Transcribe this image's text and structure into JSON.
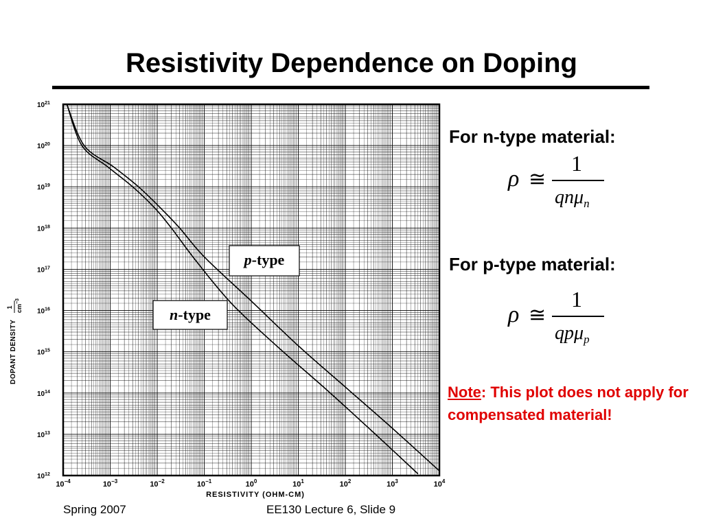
{
  "slide": {
    "title": "Resistivity Dependence on Doping",
    "footer_left": "Spring 2007",
    "footer_center": "EE130 Lecture 6, Slide 9"
  },
  "equations": {
    "n_heading": "For n-type material:",
    "p_heading": "For p-type material:",
    "rho": "ρ",
    "approx": "≅",
    "numerator": "1",
    "n_denominator": "qnμ",
    "n_subscript": "n",
    "p_denominator": "qpμ",
    "p_subscript": "p"
  },
  "note": {
    "word": "Note",
    "text": ": This plot does not apply for compensated material!"
  },
  "chart_data": {
    "type": "line",
    "xlabel": "RESISTIVITY (OHM-CM)",
    "ylabel": "DOPANT DENSITY",
    "ylabel_unit_num": "1",
    "ylabel_unit_den": "cm",
    "ylabel_unit_exp": "−3",
    "x_scale": "log",
    "y_scale": "log",
    "xlim": [
      0.0001,
      10000
    ],
    "ylim": [
      1000000000000.0,
      1e+21
    ],
    "grid": true,
    "x_tick_labels": [
      {
        "base": "10",
        "exp": "−4"
      },
      {
        "base": "10",
        "exp": "−3"
      },
      {
        "base": "10",
        "exp": "−2"
      },
      {
        "base": "10",
        "exp": "−1"
      },
      {
        "base": "10",
        "exp": "0"
      },
      {
        "base": "10",
        "exp": "1"
      },
      {
        "base": "10",
        "exp": "2"
      },
      {
        "base": "10",
        "exp": "3"
      },
      {
        "base": "10",
        "exp": "4"
      }
    ],
    "y_tick_labels": [
      {
        "base": "10",
        "exp": "21"
      },
      {
        "base": "10",
        "exp": "20"
      },
      {
        "base": "10",
        "exp": "19"
      },
      {
        "base": "10",
        "exp": "18"
      },
      {
        "base": "10",
        "exp": "17"
      },
      {
        "base": "10",
        "exp": "16"
      },
      {
        "base": "10",
        "exp": "15"
      },
      {
        "base": "10",
        "exp": "14"
      },
      {
        "base": "10",
        "exp": "13"
      },
      {
        "base": "10",
        "exp": "12"
      }
    ],
    "series": [
      {
        "name": "p-type",
        "name_italic": "p",
        "name_rest": "-type",
        "color": "#000000",
        "points": [
          [
            0.00012,
            1e+21
          ],
          [
            0.00028,
            1e+20
          ],
          [
            0.0012,
            3e+19
          ],
          [
            0.004,
            1e+19
          ],
          [
            0.012,
            3e+18
          ],
          [
            0.03,
            1e+18
          ],
          [
            0.1,
            2e+17
          ],
          [
            1,
            1.7e+16
          ],
          [
            10,
            1400000000000000.0
          ],
          [
            100,
            140000000000000.0
          ],
          [
            1000,
            14000000000000.0
          ],
          [
            10000,
            1300000000000.0
          ]
        ]
      },
      {
        "name": "n-type",
        "name_italic": "n",
        "name_rest": "-type",
        "color": "#000000",
        "points": [
          [
            0.00012,
            1e+21
          ],
          [
            0.00025,
            1e+20
          ],
          [
            0.0009,
            3e+19
          ],
          [
            0.003,
            1e+19
          ],
          [
            0.009,
            3e+18
          ],
          [
            0.02,
            1e+18
          ],
          [
            0.07,
            1.5e+17
          ],
          [
            0.4,
            1.4e+16
          ],
          [
            4,
            1200000000000000.0
          ],
          [
            40,
            120000000000000.0
          ],
          [
            400,
            11000000000000.0
          ],
          [
            3500,
            1100000000000.0
          ]
        ]
      }
    ]
  }
}
